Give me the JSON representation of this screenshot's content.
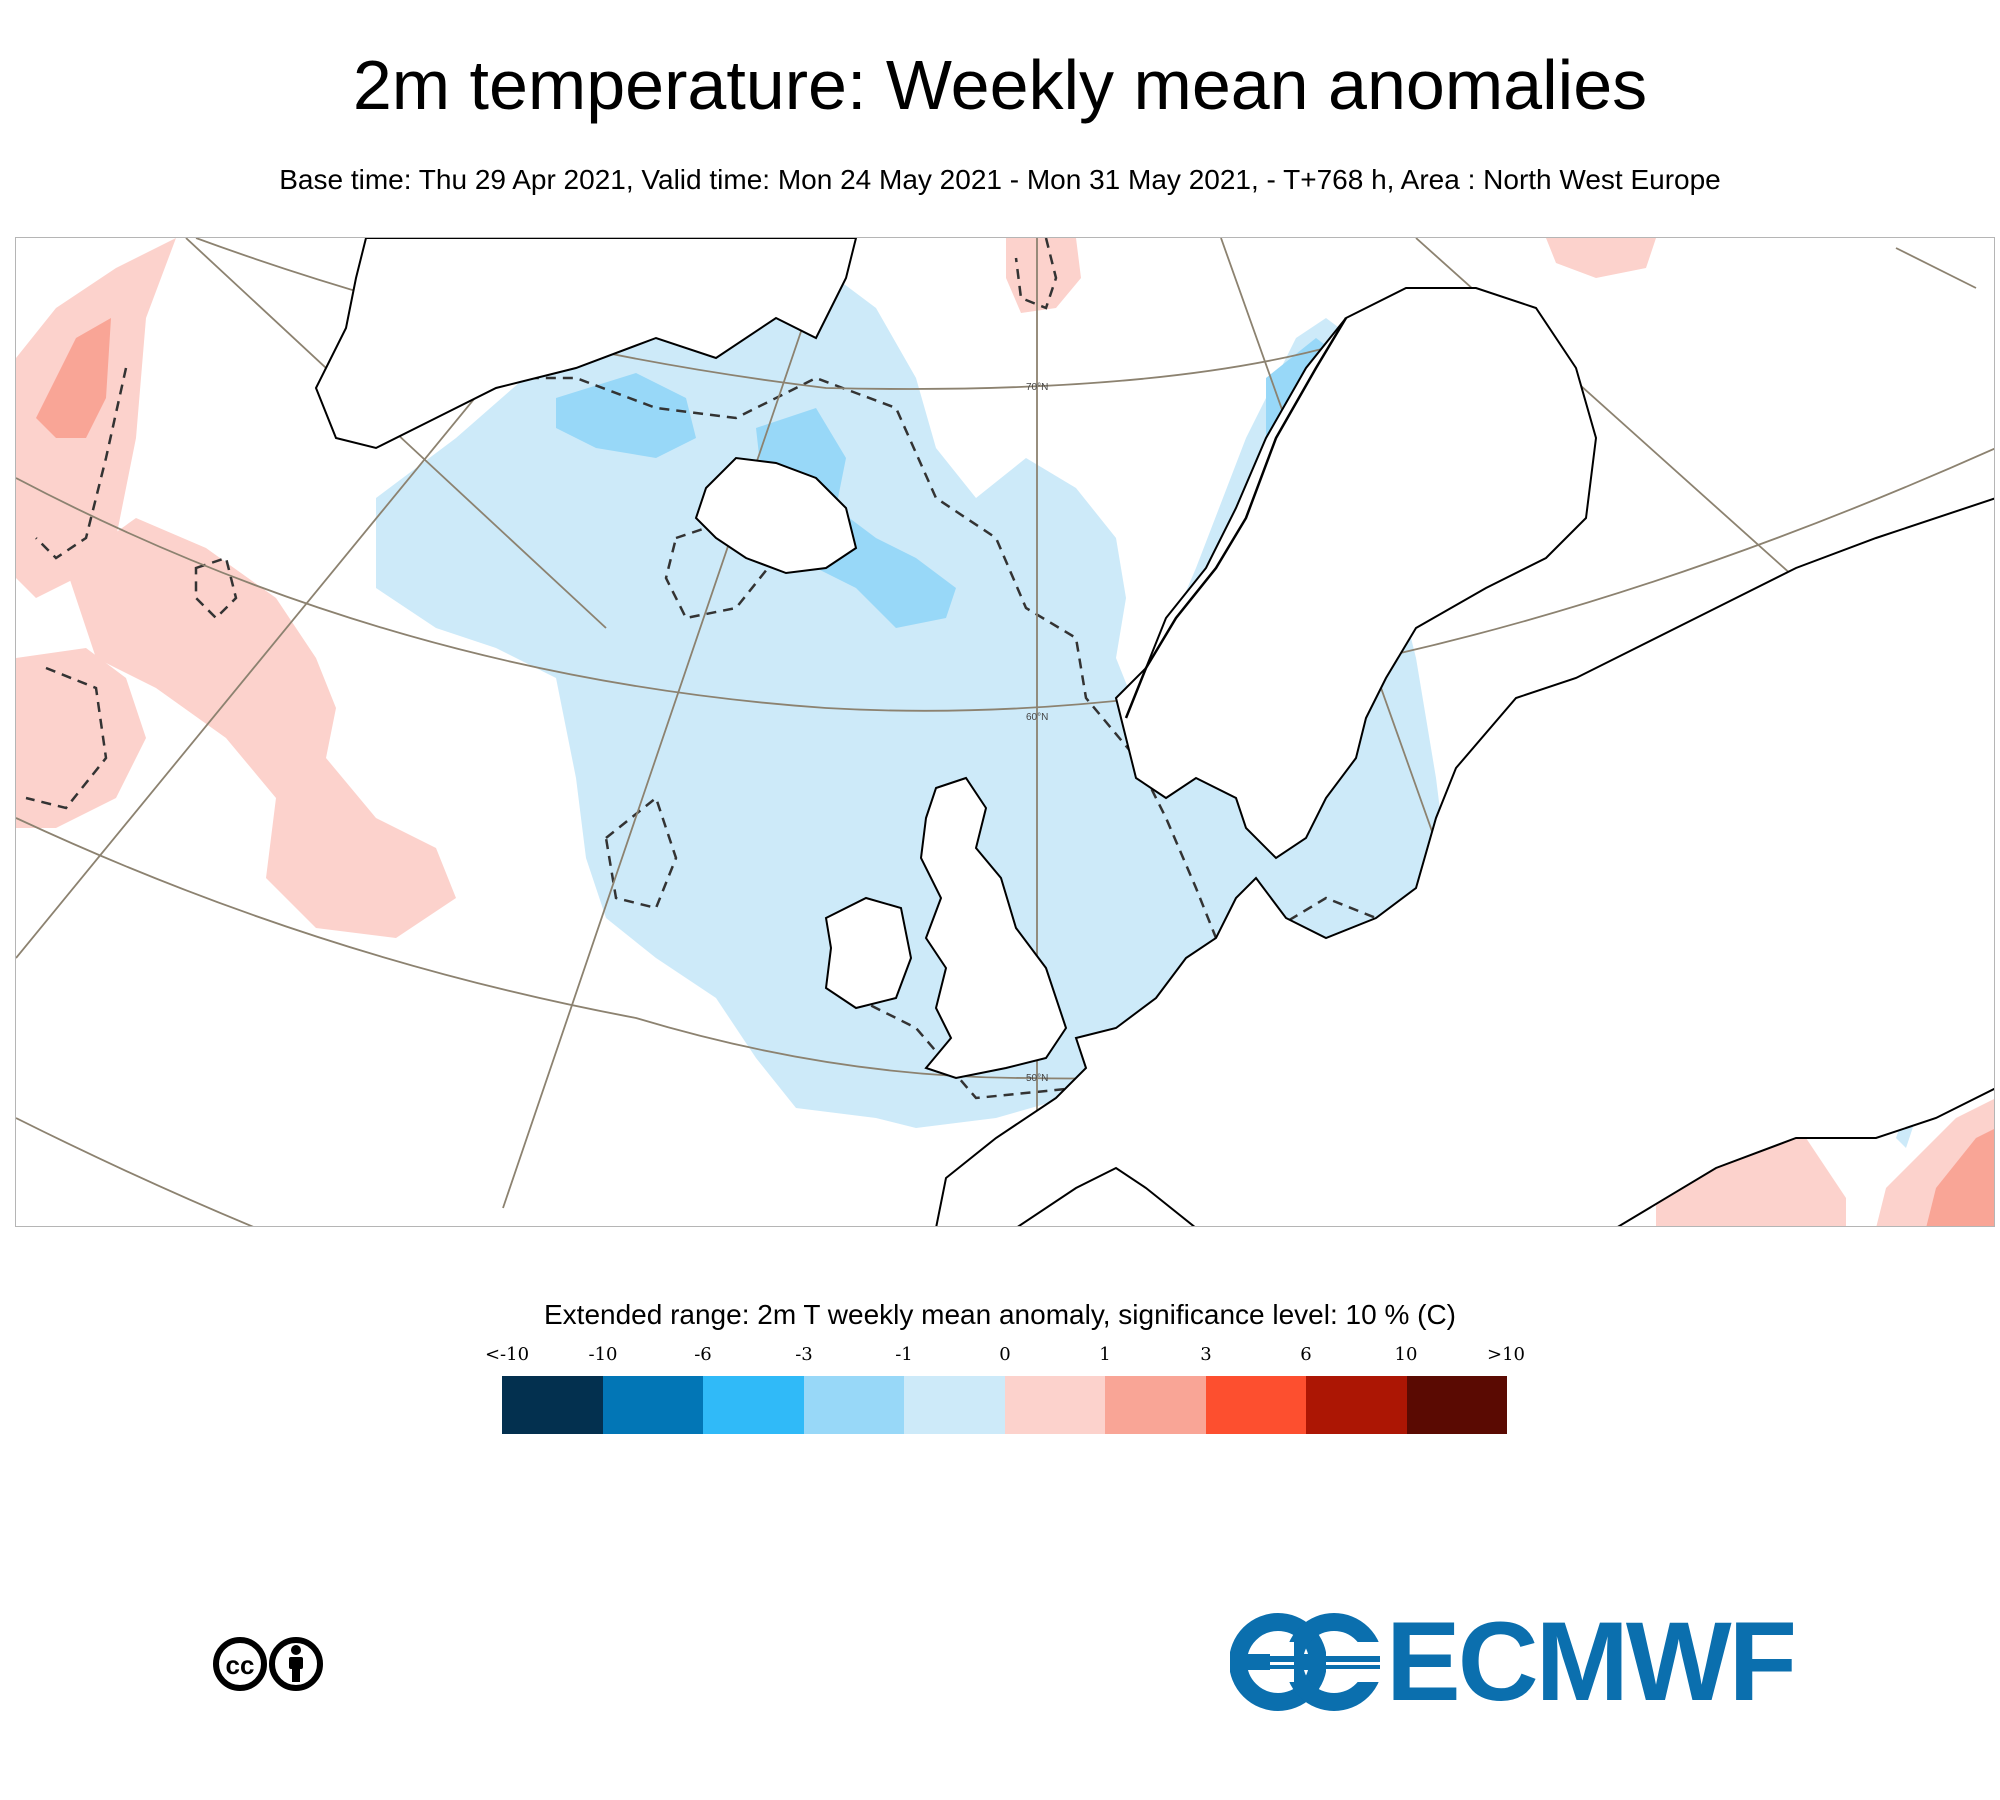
{
  "header": {
    "title": "2m temperature: Weekly mean anomalies",
    "subtitle": "Base time: Thu 29 Apr 2021, Valid time: Mon 24 May 2021 - Mon 31 May 2021, - T+768 h, Area : North West Europe"
  },
  "map": {
    "area": "North West Europe",
    "latitude_labels": [
      "70°N",
      "60°N",
      "50°N"
    ],
    "colors": {
      "weak_negative": "#cdeaf9",
      "moderate_negative": "#98d8f8",
      "weak_positive": "#fcd2cc",
      "moderate_positive": "#f9a596",
      "coastline": "#000000",
      "graticule": "#8c8270"
    }
  },
  "legend": {
    "title": "Extended range: 2m T weekly mean anomaly, significance level: 10 % (C)",
    "ticks": [
      "<-10",
      "-10",
      "-6",
      "-3",
      "-1",
      "0",
      "1",
      "3",
      "6",
      "10",
      ">10"
    ],
    "colors": [
      "#03304f",
      "#0276b6",
      "#30baf8",
      "#98d8f8",
      "#cdeaf9",
      "#fcd2cc",
      "#f9a596",
      "#fd4f2f",
      "#ac1604",
      "#5a0a02"
    ]
  },
  "footer": {
    "license_icon": "creative-commons-by-icon",
    "logo_text": "ECMWF"
  }
}
